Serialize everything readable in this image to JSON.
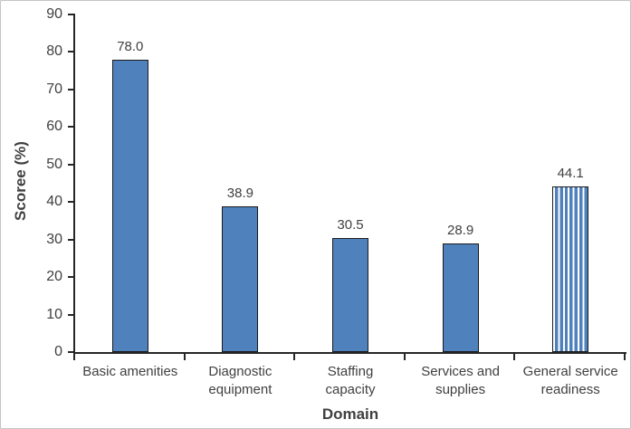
{
  "chart_data": {
    "type": "bar",
    "title": "",
    "xlabel": "Domain",
    "ylabel": "Scoree (%)",
    "ylim": [
      0,
      90
    ],
    "y_tick_step": 10,
    "y_ticks": [
      90,
      80,
      70,
      60,
      50,
      40,
      30,
      20,
      10,
      0
    ],
    "grid": false,
    "legend": "none",
    "categories": [
      "Basic amenities",
      "Diagnostic equipment",
      "Staffing capacity",
      "Services and supplies",
      "General service readiness"
    ],
    "category_label_lines": [
      [
        "Basic amenities"
      ],
      [
        "Diagnostic",
        "equipment"
      ],
      [
        "Staffing",
        "capacity"
      ],
      [
        "Services and",
        "supplies"
      ],
      [
        "General service",
        "readiness"
      ]
    ],
    "values": [
      78.0,
      38.9,
      30.5,
      28.9,
      44.1
    ],
    "value_labels": [
      "78.0",
      "38.9",
      "30.5",
      "28.9",
      "44.1"
    ],
    "bar_patterns": [
      "solid",
      "solid",
      "solid",
      "solid",
      "vertical-stripes"
    ],
    "colors": {
      "bar_fill": "#4F81BD",
      "bar_border": "#1b1b1b",
      "stripe_background": "#ffffff",
      "axis": "#262626",
      "text": "#404040",
      "frame_border": "#c4c4c4",
      "background": "#ffffff"
    }
  }
}
